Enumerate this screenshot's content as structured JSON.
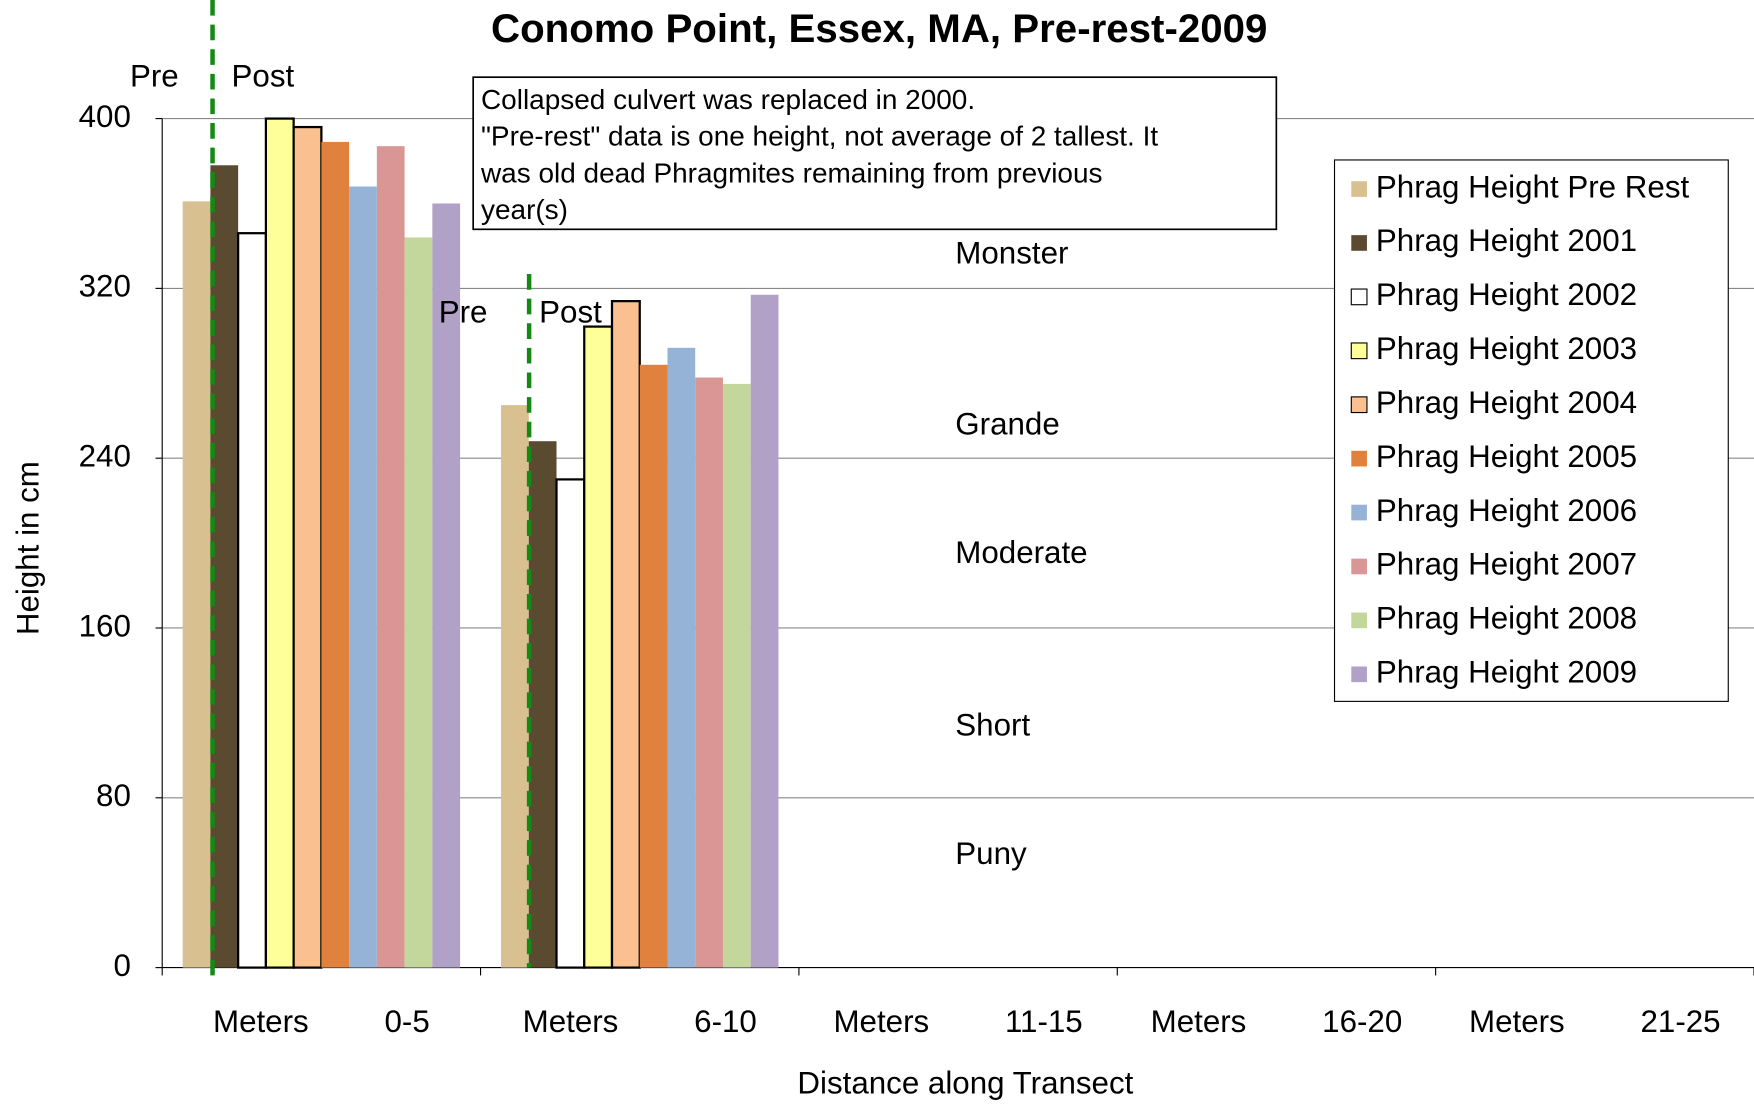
{
  "chart_data": {
    "type": "bar",
    "title": "Conomo Point, Essex, MA, Pre-rest-2009",
    "xlabel": "Distance along Transect",
    "ylabel": "Height in cm",
    "categories": [
      "Meters 0-5",
      "Meters 6-10",
      "Meters 11-15",
      "Meters 16-20",
      "Meters 21-25"
    ],
    "series": [
      {
        "name": "Phrag Height Pre Rest",
        "color": "#d8c090",
        "values": [
          361,
          265,
          null,
          null,
          null
        ]
      },
      {
        "name": "Phrag Height 2001",
        "color": "#5a4a30",
        "values": [
          378,
          248,
          null,
          null,
          null
        ]
      },
      {
        "name": "Phrag Height 2002",
        "color": "#ffffff",
        "values": [
          346,
          230,
          null,
          null,
          null
        ]
      },
      {
        "name": "Phrag Height 2003",
        "color": "#ffff99",
        "values": [
          400,
          302,
          null,
          null,
          null
        ]
      },
      {
        "name": "Phrag Height 2004",
        "color": "#fac090",
        "values": [
          396,
          314,
          null,
          null,
          null
        ]
      },
      {
        "name": "Phrag Height 2005",
        "color": "#e0823d",
        "values": [
          389,
          284,
          null,
          null,
          null
        ]
      },
      {
        "name": "Phrag Height 2006",
        "color": "#95b3d7",
        "values": [
          368,
          292,
          null,
          null,
          null
        ]
      },
      {
        "name": "Phrag Height 2007",
        "color": "#d99694",
        "values": [
          387,
          278,
          null,
          null,
          null
        ]
      },
      {
        "name": "Phrag Height 2008",
        "color": "#c3d69b",
        "values": [
          344,
          275,
          null,
          null,
          null
        ]
      },
      {
        "name": "Phrag Height 2009",
        "color": "#b2a1c7",
        "values": [
          360,
          317,
          null,
          null,
          null
        ]
      }
    ],
    "ylim": [
      0,
      400
    ],
    "yticks": [
      0,
      80,
      160,
      240,
      320,
      400
    ],
    "grid": true,
    "legend": "right",
    "annotations": [
      "Pre",
      "Post",
      "Pre",
      "Post",
      "Monster",
      "Grande",
      "Moderate",
      "Short",
      "Puny"
    ],
    "note": [
      "Collapsed culvert was replaced in 2000.",
      "\"Pre-rest\" data is one height, not average of 2 tallest. It",
      "was old dead Phragmites remaining from previous",
      "year(s)"
    ]
  }
}
